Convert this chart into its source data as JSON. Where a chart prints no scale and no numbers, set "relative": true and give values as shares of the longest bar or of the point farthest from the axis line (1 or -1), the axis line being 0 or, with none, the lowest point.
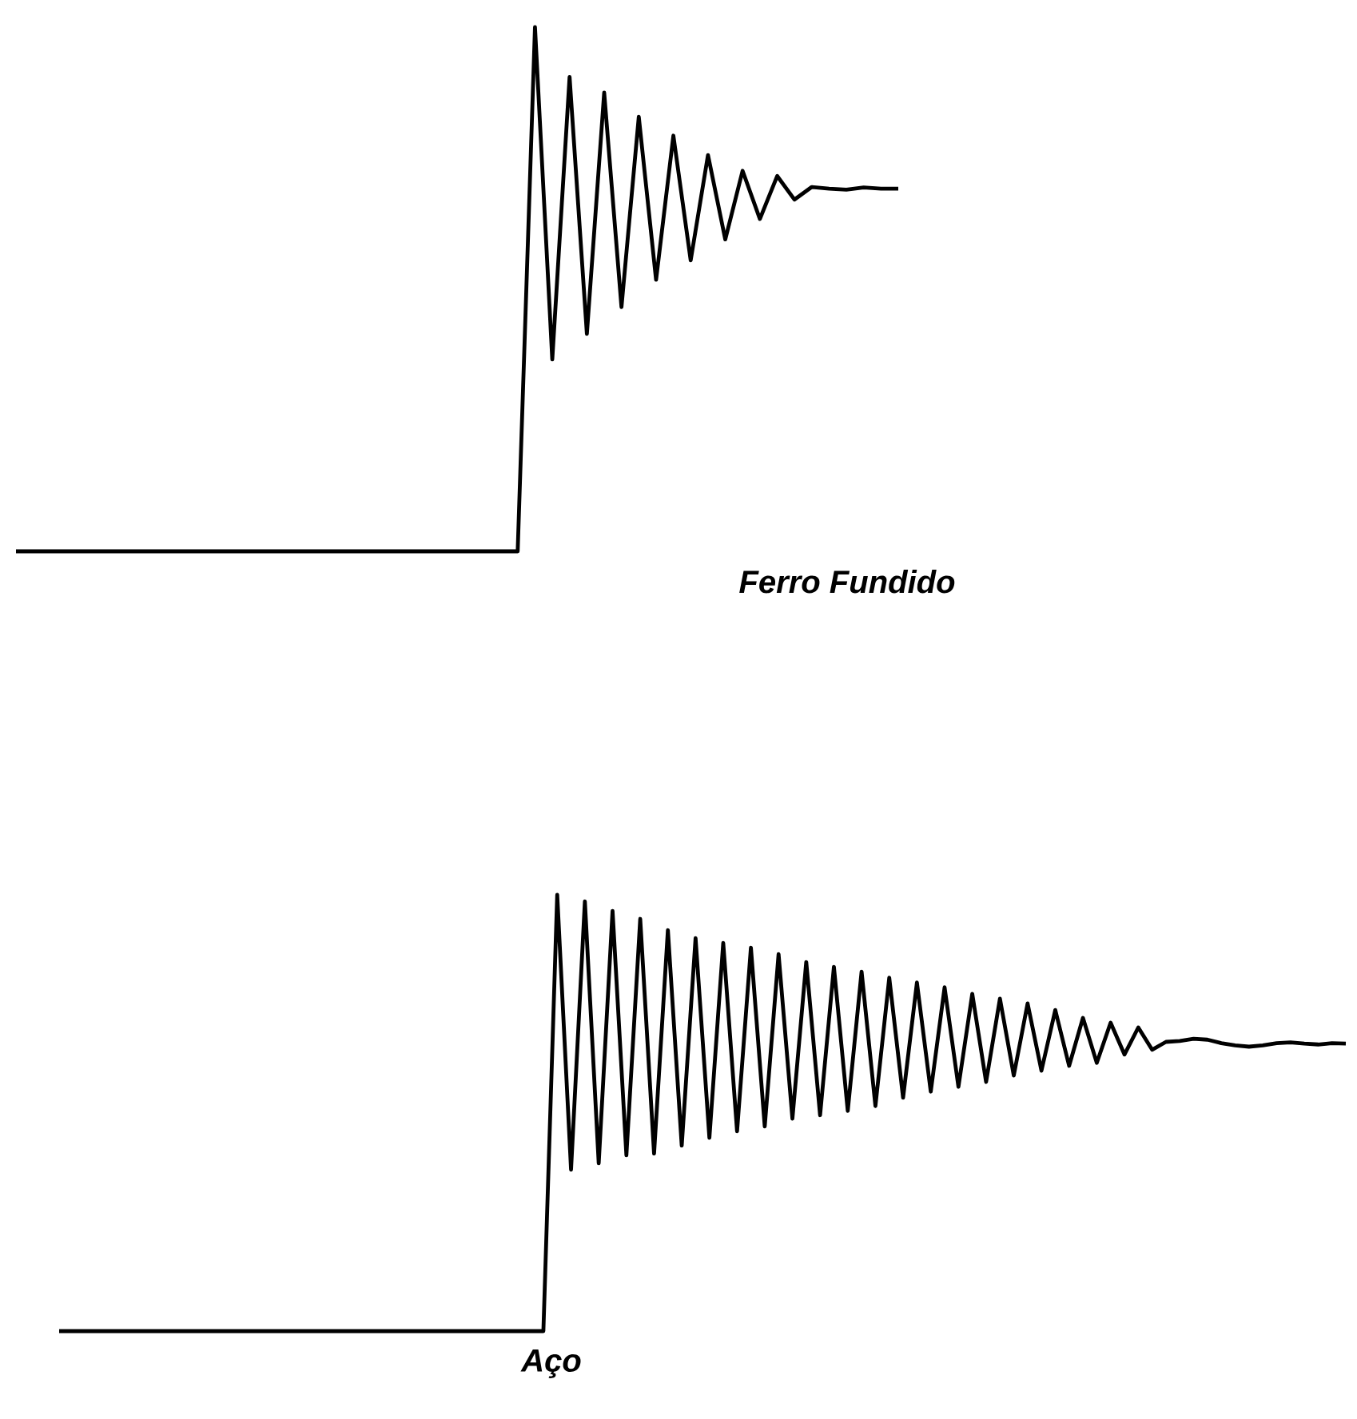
{
  "chart_data": [
    {
      "type": "line",
      "title": "Ferro Fundido",
      "relative": true,
      "tick_labels": false,
      "marker": "none",
      "color": "#000000",
      "categories": [
        null,
        null,
        null,
        null,
        null,
        null,
        null,
        null,
        null,
        null,
        null,
        null,
        null,
        null,
        null,
        null,
        null,
        null,
        null,
        null,
        null,
        null,
        null,
        null,
        null,
        null,
        null,
        null,
        null,
        null,
        null,
        null,
        null,
        null,
        null,
        null,
        null,
        null,
        null,
        null,
        null,
        null,
        null,
        null,
        null,
        null,
        null,
        null,
        null,
        null,
        null,
        null
      ],
      "values": [
        0,
        0,
        0,
        0,
        0,
        0,
        0,
        0,
        0,
        0,
        0,
        0,
        0,
        0,
        0,
        0,
        0,
        0,
        0,
        0,
        0,
        0,
        0,
        0,
        0,
        0,
        0,
        0,
        0,
        0,
        1.0,
        0.366,
        0.905,
        0.415,
        0.875,
        0.466,
        0.829,
        0.518,
        0.793,
        0.555,
        0.756,
        0.595,
        0.726,
        0.634,
        0.716,
        0.671,
        0.695,
        0.692,
        0.69,
        0.694,
        0.692,
        0.692
      ]
    },
    {
      "type": "line",
      "title": "Aço",
      "relative": true,
      "tick_labels": false,
      "marker": "none",
      "color": "#000000",
      "categories": [
        null,
        null,
        null,
        null,
        null,
        null,
        null,
        null,
        null,
        null,
        null,
        null,
        null,
        null,
        null,
        null,
        null,
        null,
        null,
        null,
        null,
        null,
        null,
        null,
        null,
        null,
        null,
        null,
        null,
        null,
        null,
        null,
        null,
        null,
        null,
        null,
        null,
        null,
        null,
        null,
        null,
        null,
        null,
        null,
        null,
        null,
        null,
        null,
        null,
        null,
        null,
        null,
        null,
        null,
        null,
        null,
        null,
        null,
        null,
        null,
        null,
        null,
        null,
        null,
        null,
        null,
        null,
        null,
        null,
        null,
        null,
        null,
        null,
        null,
        null,
        null,
        null,
        null,
        null,
        null,
        null,
        null,
        null,
        null,
        null,
        null,
        null,
        null,
        null,
        null,
        null,
        null,
        null,
        null
      ],
      "values": [
        0,
        0,
        0,
        0,
        0,
        0,
        0,
        0,
        0,
        0,
        0,
        0,
        0,
        0,
        0,
        0,
        0,
        0,
        0,
        0,
        0,
        0,
        0,
        0,
        0,
        0,
        0,
        0,
        0,
        0,
        0,
        0,
        0,
        0,
        0,
        0,
        1.0,
        0.37,
        0.985,
        0.385,
        0.963,
        0.403,
        0.945,
        0.407,
        0.919,
        0.425,
        0.901,
        0.443,
        0.89,
        0.458,
        0.879,
        0.469,
        0.864,
        0.487,
        0.846,
        0.495,
        0.835,
        0.505,
        0.824,
        0.516,
        0.81,
        0.535,
        0.799,
        0.549,
        0.788,
        0.56,
        0.773,
        0.571,
        0.762,
        0.586,
        0.751,
        0.597,
        0.736,
        0.608,
        0.718,
        0.615,
        0.707,
        0.634,
        0.696,
        0.645,
        0.663,
        0.665,
        0.67,
        0.668,
        0.66,
        0.655,
        0.652,
        0.655,
        0.66,
        0.662,
        0.659,
        0.657,
        0.66,
        0.659
      ]
    }
  ]
}
